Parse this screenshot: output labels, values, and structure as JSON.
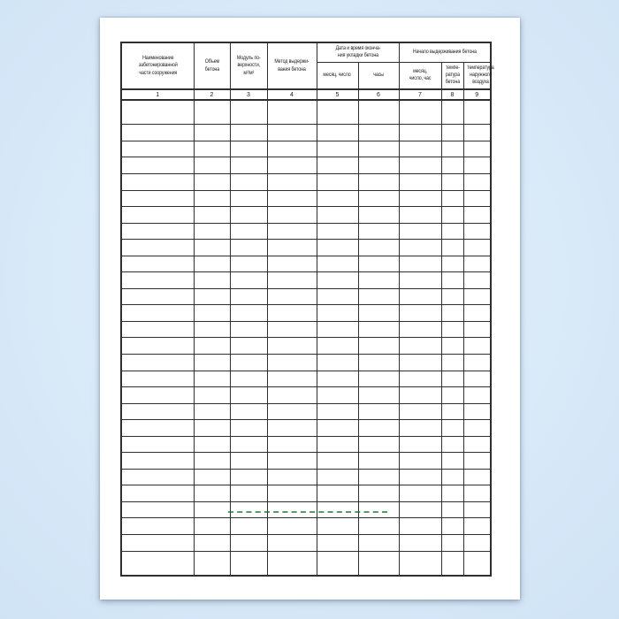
{
  "page": {
    "background": "#d2e5f6",
    "background_light": "#e4f1fc",
    "background_dark": "#c3d9ee",
    "paper": "#ffffff",
    "grid_color": "#2f2f2f",
    "text_color": "#1b1b1b"
  },
  "table": {
    "group_date": {
      "label": "Дата и время оконча-\nния укладки бетона"
    },
    "group_curing": {
      "label": "Начало выдерживания бетона"
    },
    "columns": [
      {
        "num": "1",
        "label": "Наименование\nзабетонированной\nчасти сооружения"
      },
      {
        "num": "2",
        "label": "Объем\nбетона"
      },
      {
        "num": "3",
        "label": "Модуль по-\nверхности,\nм²/м³"
      },
      {
        "num": "4",
        "label": "Метод выдержи-\nвания бетона"
      },
      {
        "num": "5",
        "label": "месяц, число"
      },
      {
        "num": "6",
        "label": "часы"
      },
      {
        "num": "7",
        "label": "месяц,\nчисло, час"
      },
      {
        "num": "8",
        "label": "темпе-\nратура\nбетона"
      },
      {
        "num": "9",
        "label": "температура\nнаружного\nвоздуха"
      }
    ],
    "empty_rows": 28
  },
  "watermark": {
    "color": "#1e7a33"
  }
}
